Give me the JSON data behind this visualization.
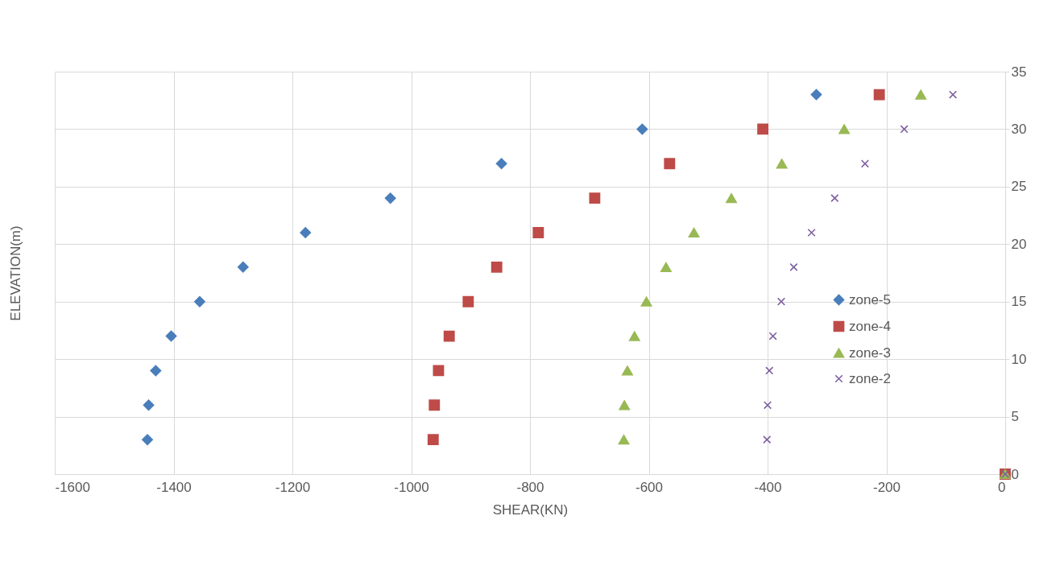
{
  "chart_data": {
    "type": "scatter",
    "xlabel": "SHEAR(KN)",
    "ylabel": "ELEVATION(m)",
    "xlim": [
      -1600,
      0
    ],
    "xticks": [
      -1600,
      -1400,
      -1200,
      -1000,
      -800,
      -600,
      -400,
      -200,
      0
    ],
    "ylim": [
      0,
      35
    ],
    "yticks": [
      0,
      5,
      10,
      15,
      20,
      25,
      30,
      35
    ],
    "grid": true,
    "legend": "right",
    "series": [
      {
        "name": "zone-5",
        "color": "#4a7ebb",
        "marker": "diamond",
        "x": [
          0,
          -1444,
          -1442,
          -1430,
          -1404,
          -1356,
          -1283,
          -1178,
          -1035,
          -848,
          -611,
          -318
        ],
        "values": [
          0,
          3,
          6,
          9,
          12,
          15,
          18,
          21,
          24,
          27,
          30,
          33
        ]
      },
      {
        "name": "zone-4",
        "color": "#be4b48",
        "marker": "square",
        "x": [
          0,
          -963,
          -961,
          -954,
          -936,
          -904,
          -856,
          -786,
          -691,
          -565,
          -408,
          -212
        ],
        "values": [
          0,
          3,
          6,
          9,
          12,
          15,
          18,
          21,
          24,
          27,
          30,
          33
        ]
      },
      {
        "name": "zone-3",
        "color": "#98b954",
        "marker": "triangle",
        "x": [
          0,
          -642,
          -641,
          -636,
          -624,
          -604,
          -571,
          -524,
          -461,
          -376,
          -271,
          -142
        ],
        "values": [
          0,
          3,
          6,
          9,
          12,
          15,
          18,
          21,
          24,
          27,
          30,
          33
        ]
      },
      {
        "name": "zone-2",
        "color": "#7d60a0",
        "marker": "cross",
        "x": [
          0,
          -401,
          -400,
          -397,
          -391,
          -377,
          -356,
          -326,
          -287,
          -236,
          -170,
          -88
        ],
        "values": [
          0,
          3,
          6,
          9,
          12,
          15,
          18,
          21,
          24,
          27,
          30,
          33
        ]
      }
    ]
  }
}
